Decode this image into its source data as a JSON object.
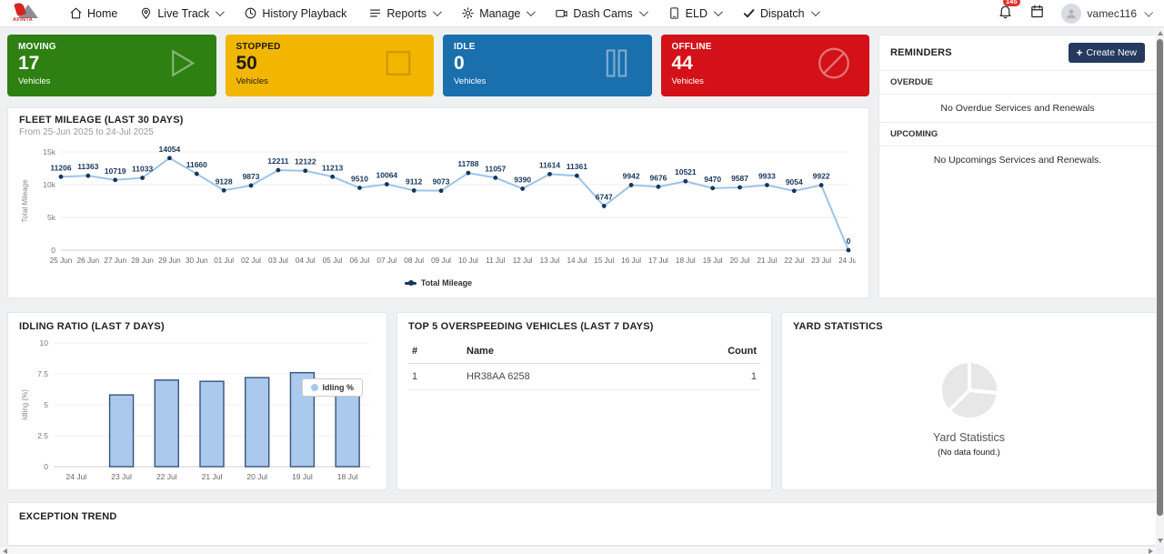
{
  "nav": {
    "brand": "AFINTA",
    "items": [
      {
        "label": "Home",
        "icon": "home-icon",
        "menu": false
      },
      {
        "label": "Live Track",
        "icon": "map-pin-icon",
        "menu": true
      },
      {
        "label": "History Playback",
        "icon": "clock-icon",
        "menu": false
      },
      {
        "label": "Reports",
        "icon": "lines-icon",
        "menu": true
      },
      {
        "label": "Manage",
        "icon": "gear-icon",
        "menu": true
      },
      {
        "label": "Dash Cams",
        "icon": "camera-icon",
        "menu": true
      },
      {
        "label": "ELD",
        "icon": "tablet-icon",
        "menu": true
      },
      {
        "label": "Dispatch",
        "icon": "check-icon",
        "menu": true
      }
    ]
  },
  "user": {
    "name": "vamec116",
    "notification_badge": "145"
  },
  "status_cards": [
    {
      "label": "MOVING",
      "value": "17",
      "unit": "Vehicles",
      "color": "#2e8012",
      "text_color": "#ffffff",
      "icon": "play-icon"
    },
    {
      "label": "STOPPED",
      "value": "50",
      "unit": "Vehicles",
      "color": "#f2b600",
      "text_color": "#1c1c1c",
      "icon": "square-icon"
    },
    {
      "label": "IDLE",
      "value": "0",
      "unit": "Vehicles",
      "color": "#1a6fad",
      "text_color": "#ffffff",
      "icon": "pause-icon"
    },
    {
      "label": "OFFLINE",
      "value": "44",
      "unit": "Vehicles",
      "color": "#d41118",
      "text_color": "#ffffff",
      "icon": "ban-icon"
    }
  ],
  "fleet": {
    "title": "FLEET MILEAGE (LAST 30 DAYS)",
    "subtitle": "From 25-Jun 2025 to 24-Jul 2025"
  },
  "idling": {
    "title": "IDLING RATIO (LAST 7 DAYS)"
  },
  "overspeed": {
    "title": "TOP 5 OVERSPEEDING VEHICLES (LAST 7 DAYS)",
    "columns": [
      "#",
      "Name",
      "Count"
    ],
    "rows": [
      [
        "1",
        "HR38AA 6258",
        "1"
      ]
    ]
  },
  "yard": {
    "title": "YARD STATISTICS",
    "placeholder_title": "Yard Statistics",
    "placeholder_sub": "(No data found.)"
  },
  "exception": {
    "title": "EXCEPTION TREND"
  },
  "reminders": {
    "title": "REMINDERS",
    "create_label": "Create New",
    "overdue_label": "OVERDUE",
    "overdue_empty": "No Overdue Services and Renewals",
    "upcoming_label": "UPCOMING",
    "upcoming_empty": "No Upcomings Services and Renewals."
  },
  "chart_data": [
    {
      "type": "line",
      "title": "FLEET MILEAGE (LAST 30 DAYS)",
      "legend": "Total Mileage",
      "ylabel": "Total Mileage",
      "ylim": [
        0,
        15000
      ],
      "yticks": [
        {
          "v": 0,
          "label": "0"
        },
        {
          "v": 5000,
          "label": "5k"
        },
        {
          "v": 10000,
          "label": "10k"
        },
        {
          "v": 15000,
          "label": "15k"
        }
      ],
      "categories": [
        "25 Jun",
        "26 Jun",
        "27 Jun",
        "28 Jun",
        "29 Jun",
        "30 Jun",
        "01 Jul",
        "02 Jul",
        "03 Jul",
        "04 Jul",
        "05 Jul",
        "06 Jul",
        "07 Jul",
        "08 Jul",
        "09 Jul",
        "10 Jul",
        "11 Jul",
        "12 Jul",
        "13 Jul",
        "14 Jul",
        "15 Jul",
        "16 Jul",
        "17 Jul",
        "18 Jul",
        "19 Jul",
        "20 Jul",
        "21 Jul",
        "22 Jul",
        "23 Jul",
        "24 Jul"
      ],
      "values": [
        11206,
        11363,
        10719,
        11033,
        14054,
        11660,
        9128,
        9873,
        12211,
        12122,
        11213,
        9510,
        10064,
        9112,
        9073,
        11788,
        11057,
        9390,
        11614,
        11361,
        6747,
        9942,
        9676,
        10521,
        9470,
        9587,
        9933,
        9054,
        9922,
        0
      ],
      "line_color": "#9dc3e8",
      "marker_color": "#17365c"
    },
    {
      "type": "bar",
      "title": "IDLING RATIO (LAST 7 DAYS)",
      "legend": "Idling %",
      "ylabel": "Idling (%)",
      "ylim": [
        0,
        10
      ],
      "yticks": [
        {
          "v": 0,
          "label": "0"
        },
        {
          "v": 2.5,
          "label": "2.5"
        },
        {
          "v": 5,
          "label": "5"
        },
        {
          "v": 7.5,
          "label": "7.5"
        },
        {
          "v": 10,
          "label": "10"
        }
      ],
      "categories": [
        "24 Jul",
        "23 Jul",
        "22 Jul",
        "21 Jul",
        "20 Jul",
        "19 Jul",
        "18 Jul"
      ],
      "values": [
        0,
        5.8,
        7.0,
        6.9,
        7.2,
        7.6,
        7.0
      ],
      "bar_fill": "#aac9ec",
      "bar_stroke": "#37537a"
    }
  ]
}
